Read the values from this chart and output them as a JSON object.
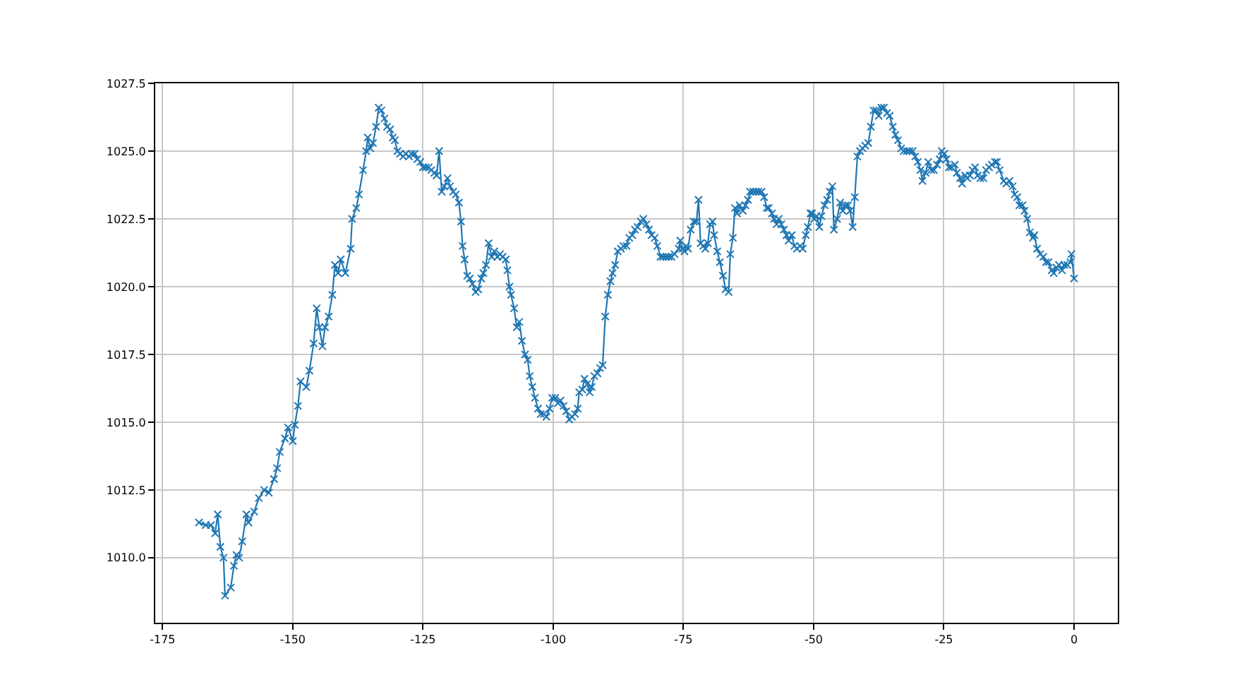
{
  "chart_data": {
    "type": "line",
    "color": "#1f77b4",
    "marker": "cross",
    "line_style": "solid",
    "grid": true,
    "xlim": [
      -176.4,
      8.4
    ],
    "xticks": [
      -175,
      -150,
      -125,
      -100,
      -75,
      -50,
      -25,
      0
    ],
    "ylim": [
      1007.6,
      1027.5
    ],
    "yticks": [
      {
        "value": 1010,
        "label": "1010.0"
      },
      {
        "value": 1012.5,
        "label": "1012.5"
      },
      {
        "value": 1015,
        "label": "1015.0"
      },
      {
        "value": 1017.5,
        "label": "1017.5"
      },
      {
        "value": 1020,
        "label": "1020.0"
      },
      {
        "value": 1022.5,
        "label": "1022.5"
      },
      {
        "value": 1025,
        "label": "1025.0"
      },
      {
        "value": 1027.5,
        "label": "1027.5"
      }
    ],
    "x": [
      -168.0,
      -166.7,
      -165.7,
      -164.9,
      -164.4,
      -163.9,
      -163.3,
      -163.0,
      -161.9,
      -161.3,
      -160.8,
      -160.3,
      -159.7,
      -158.9,
      -158.5,
      -157.4,
      -156.5,
      -155.5,
      -154.6,
      -153.6,
      -153.0,
      -152.5,
      -151.5,
      -150.9,
      -150.0,
      -149.6,
      -149.0,
      -148.5,
      -147.4,
      -146.8,
      -146.0,
      -145.4,
      -144.9,
      -144.3,
      -143.8,
      -143.1,
      -142.4,
      -141.9,
      -141.3,
      -140.8,
      -139.9,
      -138.9,
      -138.6,
      -137.8,
      -137.3,
      -136.5,
      -135.9,
      -135.6,
      -135.1,
      -134.6,
      -134.0,
      -133.5,
      -133.0,
      -132.4,
      -131.9,
      -131.3,
      -130.8,
      -130.4,
      -129.9,
      -129.4,
      -128.8,
      -128.3,
      -127.7,
      -127.2,
      -126.6,
      -126.1,
      -125.5,
      -125.0,
      -124.5,
      -123.9,
      -123.4,
      -122.8,
      -122.4,
      -121.9,
      -121.4,
      -120.9,
      -120.3,
      -119.8,
      -119.2,
      -118.7,
      -118.1,
      -117.7,
      -117.4,
      -117.0,
      -116.5,
      -116.0,
      -115.5,
      -114.9,
      -114.4,
      -113.8,
      -113.4,
      -112.9,
      -112.4,
      -111.8,
      -111.3,
      -110.7,
      -110.2,
      -109.7,
      -109.1,
      -108.8,
      -108.4,
      -108.1,
      -107.5,
      -107.0,
      -106.5,
      -106.0,
      -105.4,
      -104.9,
      -104.5,
      -104.0,
      -103.5,
      -102.9,
      -102.4,
      -101.8,
      -101.3,
      -100.7,
      -100.2,
      -99.6,
      -99.1,
      -98.6,
      -98.0,
      -97.5,
      -96.9,
      -96.4,
      -95.8,
      -95.3,
      -95.0,
      -94.4,
      -94.0,
      -93.5,
      -93.0,
      -92.6,
      -92.1,
      -91.5,
      -91.0,
      -90.5,
      -90.0,
      -89.5,
      -89.0,
      -88.6,
      -88.1,
      -87.6,
      -87.0,
      -86.5,
      -85.9,
      -85.4,
      -84.8,
      -84.3,
      -83.8,
      -83.2,
      -82.7,
      -82.1,
      -81.6,
      -81.1,
      -80.5,
      -80.0,
      -79.4,
      -78.9,
      -78.3,
      -77.8,
      -77.3,
      -76.7,
      -75.9,
      -75.6,
      -75.2,
      -74.8,
      -74.5,
      -74.1,
      -73.6,
      -73.0,
      -72.5,
      -72.1,
      -71.7,
      -71.2,
      -70.8,
      -70.3,
      -69.9,
      -69.4,
      -69.1,
      -68.5,
      -68.0,
      -67.4,
      -66.9,
      -66.3,
      -66.0,
      -65.5,
      -65.1,
      -64.7,
      -64.2,
      -63.6,
      -63.1,
      -62.6,
      -62.2,
      -61.6,
      -61.1,
      -60.6,
      -60.0,
      -59.5,
      -59.0,
      -58.6,
      -58.0,
      -57.6,
      -57.1,
      -56.7,
      -56.2,
      -55.7,
      -55.2,
      -54.8,
      -54.2,
      -53.7,
      -53.2,
      -52.6,
      -52.1,
      -51.5,
      -51.1,
      -50.6,
      -50.3,
      -49.9,
      -49.4,
      -48.9,
      -48.5,
      -47.9,
      -47.4,
      -46.9,
      -46.4,
      -46.1,
      -45.5,
      -44.9,
      -44.4,
      -43.9,
      -43.4,
      -43.0,
      -42.5,
      -42.1,
      -41.6,
      -41.1,
      -40.6,
      -40.1,
      -39.5,
      -39.0,
      -38.5,
      -38.0,
      -37.5,
      -37.0,
      -36.5,
      -35.9,
      -35.4,
      -34.8,
      -34.3,
      -33.8,
      -33.2,
      -32.7,
      -32.1,
      -31.6,
      -31.0,
      -30.5,
      -30.0,
      -29.5,
      -29.1,
      -28.5,
      -28.0,
      -27.4,
      -26.9,
      -26.3,
      -25.8,
      -25.4,
      -24.9,
      -24.5,
      -24.0,
      -23.5,
      -22.9,
      -22.5,
      -21.9,
      -21.5,
      -20.9,
      -20.5,
      -20.0,
      -19.5,
      -19.0,
      -18.5,
      -18.0,
      -17.4,
      -16.9,
      -16.3,
      -15.8,
      -15.2,
      -14.8,
      -14.3,
      -13.5,
      -13.0,
      -12.4,
      -11.8,
      -11.4,
      -10.9,
      -10.5,
      -9.9,
      -9.5,
      -9.0,
      -8.5,
      -7.9,
      -7.6,
      -7.1,
      -6.5,
      -5.9,
      -5.4,
      -4.9,
      -4.3,
      -3.9,
      -3.4,
      -2.9,
      -2.3,
      -1.9,
      -1.3,
      -0.7,
      -0.5,
      0.0
    ],
    "values": [
      1011.3,
      1011.2,
      1011.2,
      1010.9,
      1011.6,
      1010.4,
      1010.0,
      1008.6,
      1008.9,
      1009.7,
      1010.1,
      1010.0,
      1010.6,
      1011.6,
      1011.3,
      1011.7,
      1012.2,
      1012.5,
      1012.4,
      1012.9,
      1013.3,
      1013.9,
      1014.4,
      1014.8,
      1014.3,
      1014.9,
      1015.6,
      1016.5,
      1016.3,
      1016.9,
      1017.9,
      1019.2,
      1018.5,
      1017.8,
      1018.5,
      1018.9,
      1019.7,
      1020.8,
      1020.5,
      1021.0,
      1020.5,
      1021.4,
      1022.5,
      1022.9,
      1023.4,
      1024.3,
      1025.0,
      1025.5,
      1025.1,
      1025.3,
      1025.9,
      1026.6,
      1026.5,
      1026.2,
      1025.9,
      1025.8,
      1025.5,
      1025.4,
      1025.0,
      1024.9,
      1024.8,
      1024.9,
      1024.8,
      1024.9,
      1024.9,
      1024.7,
      1024.6,
      1024.4,
      1024.4,
      1024.4,
      1024.3,
      1024.2,
      1024.1,
      1025.0,
      1023.5,
      1023.7,
      1024.0,
      1023.7,
      1023.5,
      1023.4,
      1023.1,
      1022.4,
      1021.5,
      1021.0,
      1020.4,
      1020.3,
      1020.1,
      1019.8,
      1019.9,
      1020.3,
      1020.5,
      1020.8,
      1021.6,
      1021.1,
      1021.3,
      1021.1,
      1021.2,
      1021.1,
      1021.0,
      1020.6,
      1020.0,
      1019.7,
      1019.2,
      1018.5,
      1018.7,
      1018.0,
      1017.5,
      1017.3,
      1016.7,
      1016.3,
      1015.9,
      1015.5,
      1015.3,
      1015.3,
      1015.2,
      1015.5,
      1015.9,
      1015.9,
      1015.7,
      1015.8,
      1015.6,
      1015.4,
      1015.1,
      1015.2,
      1015.3,
      1015.5,
      1016.1,
      1016.2,
      1016.6,
      1016.4,
      1016.1,
      1016.3,
      1016.7,
      1016.8,
      1017.0,
      1017.1,
      1018.9,
      1019.7,
      1020.2,
      1020.5,
      1020.8,
      1021.3,
      1021.4,
      1021.5,
      1021.5,
      1021.8,
      1021.9,
      1022.1,
      1022.2,
      1022.4,
      1022.5,
      1022.3,
      1022.1,
      1021.9,
      1021.8,
      1021.5,
      1021.1,
      1021.1,
      1021.1,
      1021.1,
      1021.1,
      1021.2,
      1021.4,
      1021.7,
      1021.4,
      1021.3,
      1021.5,
      1021.4,
      1022.1,
      1022.4,
      1022.4,
      1023.2,
      1021.6,
      1021.5,
      1021.4,
      1021.6,
      1022.3,
      1022.4,
      1021.9,
      1021.3,
      1020.9,
      1020.4,
      1019.9,
      1019.8,
      1021.2,
      1021.8,
      1022.9,
      1022.7,
      1023.0,
      1022.8,
      1023.0,
      1023.2,
      1023.5,
      1023.5,
      1023.5,
      1023.5,
      1023.5,
      1023.3,
      1022.9,
      1022.9,
      1022.7,
      1022.5,
      1022.3,
      1022.5,
      1022.3,
      1022.1,
      1021.9,
      1021.7,
      1021.9,
      1021.5,
      1021.4,
      1021.5,
      1021.4,
      1021.9,
      1022.2,
      1022.7,
      1022.7,
      1022.5,
      1022.6,
      1022.2,
      1022.6,
      1023.0,
      1023.2,
      1023.5,
      1023.7,
      1022.1,
      1022.5,
      1023.1,
      1022.8,
      1023.0,
      1023.0,
      1022.8,
      1022.2,
      1023.3,
      1024.8,
      1025.0,
      1025.1,
      1025.2,
      1025.3,
      1025.9,
      1026.5,
      1026.5,
      1026.3,
      1026.6,
      1026.6,
      1026.4,
      1026.3,
      1025.9,
      1025.6,
      1025.4,
      1025.1,
      1025.0,
      1025.0,
      1025.0,
      1025.0,
      1024.8,
      1024.6,
      1024.3,
      1023.9,
      1024.2,
      1024.6,
      1024.3,
      1024.3,
      1024.5,
      1024.7,
      1025.0,
      1024.9,
      1024.7,
      1024.4,
      1024.4,
      1024.5,
      1024.2,
      1024.0,
      1023.8,
      1024.1,
      1024.0,
      1024.1,
      1024.3,
      1024.4,
      1024.1,
      1024.0,
      1024.0,
      1024.3,
      1024.4,
      1024.5,
      1024.6,
      1024.6,
      1024.3,
      1023.9,
      1023.8,
      1023.9,
      1023.7,
      1023.4,
      1023.3,
      1023.0,
      1023.0,
      1022.8,
      1022.5,
      1022.0,
      1021.8,
      1021.9,
      1021.4,
      1021.2,
      1021.1,
      1020.9,
      1020.9,
      1020.6,
      1020.5,
      1020.7,
      1020.8,
      1020.6,
      1020.8,
      1020.8,
      1020.9,
      1021.2,
      1020.3
    ]
  }
}
